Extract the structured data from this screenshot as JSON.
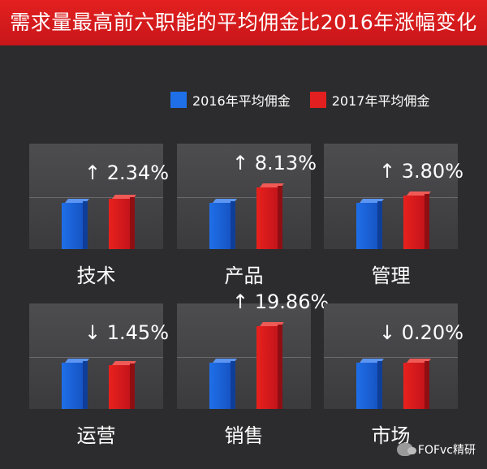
{
  "chart_data": {
    "type": "bar",
    "title": "需求量最高前六职能的平均佣金比2016年涨幅变化",
    "series": [
      {
        "name": "2016年平均佣金",
        "color": "#1f6fe8"
      },
      {
        "name": "2017年平均佣金",
        "color": "#e3201f"
      }
    ],
    "categories": [
      "技术",
      "产品",
      "管理",
      "运营",
      "销售",
      "市场"
    ],
    "changes": [
      {
        "direction": "↑",
        "value": "2.34%"
      },
      {
        "direction": "↑",
        "value": "8.13%"
      },
      {
        "direction": "↑",
        "value": "3.80%"
      },
      {
        "direction": "↓",
        "value": "1.45%"
      },
      {
        "direction": "↑",
        "value": "19.86%"
      },
      {
        "direction": "↓",
        "value": "0.20%"
      }
    ],
    "relative_values_2017_vs_2016": [
      1.0234,
      1.0813,
      1.038,
      0.9855,
      1.1986,
      0.998
    ]
  },
  "watermark": "FOFvc精研",
  "watermark_icon": "wechat-icon"
}
